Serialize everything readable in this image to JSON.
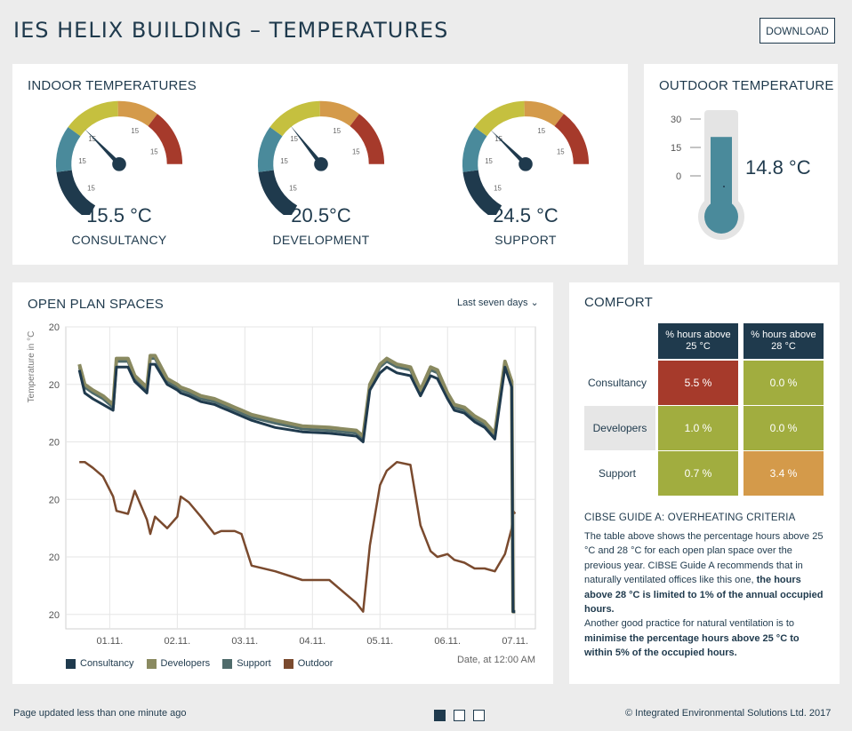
{
  "header": {
    "title": "IES HELIX BUILDING – TEMPERATURES",
    "download_label": "DOWNLOAD"
  },
  "indoor": {
    "title": "INDOOR TEMPERATURES",
    "tick_label": "15",
    "gauges": [
      {
        "value": "15.5 °C",
        "label": "CONSULTANCY",
        "needle_fraction": 0.44
      },
      {
        "value": "20.5°C",
        "label": "DEVELOPMENT",
        "needle_fraction": 0.465
      },
      {
        "value": "24.5 °C",
        "label": "SUPPORT",
        "needle_fraction": 0.435
      }
    ],
    "colors": {
      "cold": "#1f3a4d",
      "cool": "#4a8a9b",
      "ok": "#c5c03f",
      "warm": "#d49a4a",
      "hot": "#a63a2b"
    }
  },
  "outdoor": {
    "title": "OUTDOOR TEMPERATURE",
    "value": "14.8 °C",
    "scale": [
      "30",
      "15",
      "0"
    ],
    "fill_fraction": 0.78,
    "color": "#4a8a9b"
  },
  "openplan": {
    "title": "OPEN PLAN SPACES",
    "range_label": "Last seven days ⌄",
    "y_title": "Temperature in °C",
    "x_title": "Date, at 12:00 AM",
    "legend": [
      {
        "name": "Consultancy",
        "color": "#1f3a4d"
      },
      {
        "name": "Developers",
        "color": "#8a8a60"
      },
      {
        "name": "Support",
        "color": "#4f6b6b"
      },
      {
        "name": "Outdoor",
        "color": "#7a4a2e"
      }
    ]
  },
  "chart_data": {
    "type": "line",
    "title": "OPEN PLAN SPACES",
    "xlabel": "Date, at 12:00 AM",
    "ylabel": "Temperature in °C",
    "x_ticks": [
      "01.11.",
      "02.11.",
      "03.11.",
      "04.11.",
      "05.11.",
      "06.11.",
      "07.11."
    ],
    "y_ticks": [
      "20",
      "20",
      "20",
      "20",
      "20",
      "20"
    ],
    "y_axis_range": [
      15.5,
      26
    ],
    "x": [
      0.0,
      0.08,
      0.2,
      0.35,
      0.5,
      0.55,
      0.72,
      0.82,
      1.0,
      1.05,
      1.12,
      1.3,
      1.45,
      1.5,
      1.62,
      1.8,
      2.0,
      2.1,
      2.2,
      2.3,
      2.4,
      2.55,
      2.9,
      3.3,
      3.7,
      4.1,
      4.2,
      4.3,
      4.45,
      4.55,
      4.7,
      4.9,
      5.05,
      5.2,
      5.3,
      5.45,
      5.55,
      5.7,
      5.85,
      6.0,
      6.15,
      6.3,
      6.4,
      6.42,
      6.45
    ],
    "series": [
      {
        "name": "Consultancy",
        "values": [
          24.5,
          23.7,
          23.5,
          23.3,
          23.1,
          24.6,
          24.6,
          24.1,
          23.7,
          24.7,
          24.7,
          24.0,
          23.8,
          23.7,
          23.6,
          23.4,
          23.3,
          23.2,
          23.1,
          23.0,
          22.9,
          22.75,
          22.5,
          22.35,
          22.3,
          22.2,
          22.0,
          23.8,
          24.4,
          24.6,
          24.4,
          24.3,
          23.6,
          24.3,
          24.2,
          23.5,
          23.1,
          23.0,
          22.7,
          22.5,
          22.1,
          24.6,
          23.9,
          16.1,
          16.1
        ]
      },
      {
        "name": "Developers",
        "values": [
          24.7,
          24.0,
          23.8,
          23.6,
          23.3,
          24.9,
          24.9,
          24.3,
          23.9,
          25.0,
          25.0,
          24.2,
          24.0,
          23.9,
          23.8,
          23.6,
          23.5,
          23.4,
          23.3,
          23.2,
          23.1,
          22.95,
          22.75,
          22.55,
          22.5,
          22.4,
          22.2,
          24.0,
          24.7,
          24.9,
          24.7,
          24.6,
          23.8,
          24.6,
          24.5,
          23.7,
          23.3,
          23.2,
          22.9,
          22.7,
          22.3,
          24.8,
          24.1,
          16.1,
          16.1
        ]
      },
      {
        "name": "Support",
        "values": [
          24.6,
          23.9,
          23.7,
          23.5,
          23.2,
          24.8,
          24.8,
          24.2,
          23.8,
          24.9,
          24.9,
          24.1,
          23.9,
          23.8,
          23.7,
          23.5,
          23.4,
          23.3,
          23.2,
          23.1,
          23.0,
          22.85,
          22.65,
          22.45,
          22.4,
          22.3,
          22.1,
          23.9,
          24.6,
          24.8,
          24.6,
          24.5,
          23.7,
          24.5,
          24.4,
          23.6,
          23.2,
          23.1,
          22.8,
          22.6,
          22.2,
          24.7,
          24.0,
          16.1,
          16.1
        ]
      },
      {
        "name": "Outdoor",
        "values": [
          21.3,
          21.3,
          21.1,
          20.8,
          20.1,
          19.6,
          19.5,
          20.3,
          19.3,
          18.8,
          19.4,
          19.0,
          19.4,
          20.1,
          19.9,
          19.4,
          18.8,
          18.9,
          18.9,
          18.9,
          18.8,
          17.7,
          17.5,
          17.2,
          17.2,
          16.4,
          16.1,
          18.4,
          20.5,
          21.0,
          21.3,
          21.2,
          19.1,
          18.2,
          18.0,
          18.1,
          17.9,
          17.8,
          17.6,
          17.6,
          17.5,
          18.1,
          19.0,
          19.6,
          19.5
        ]
      }
    ],
    "grid": true,
    "legend_position": "bottom-left"
  },
  "comfort": {
    "title": "COMFORT",
    "headers": [
      "% hours above 25 °C",
      "% hours above 28 °C"
    ],
    "rows": [
      {
        "label": "Consultancy",
        "values": [
          "5.5 %",
          "0.0 %"
        ],
        "colors": [
          "#a63a2b",
          "#a1ad3f"
        ]
      },
      {
        "label": "Developers",
        "values": [
          "1.0 %",
          "0.0 %"
        ],
        "colors": [
          "#a1ad3f",
          "#a1ad3f"
        ]
      },
      {
        "label": "Support",
        "values": [
          "0.7 %",
          "3.4 %"
        ],
        "colors": [
          "#a1ad3f",
          "#d49a4a"
        ]
      }
    ],
    "criteria_title": "CIBSE GUIDE A: OVERHEATING CRITERIA",
    "criteria_p1": "The table above shows the percentage hours above 25 °C and 28 °C for each open plan space over the previous year. CIBSE Guide A recommends that in naturally ventilated offices like this one, ",
    "criteria_p1_bold": "the hours above 28 °C is limited to 1% of the annual occupied hours.",
    "criteria_p2": "Another good practice for natural ventilation is to ",
    "criteria_p2_bold": "minimise the percentage hours above 25 °C to within 5% of the occupied hours."
  },
  "footer": {
    "updated": "Page updated less than one minute ago",
    "copyright": "© Integrated Environmental Solutions Ltd. 2017",
    "pages": 3,
    "active_page": 1
  }
}
